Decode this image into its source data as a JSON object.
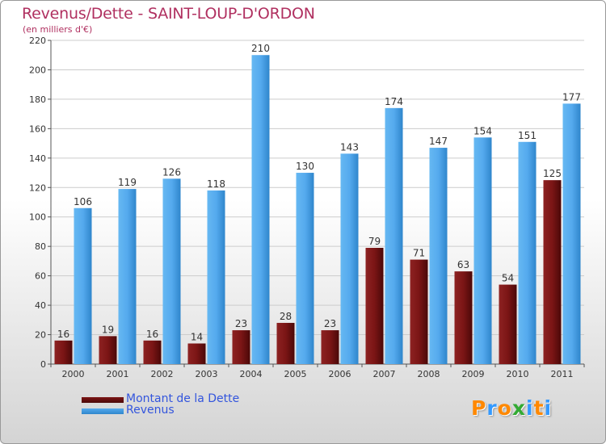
{
  "title": "Revenus/Dette - SAINT-LOUP-D'ORDON",
  "subtitle": "(en milliers d'€)",
  "logo": [
    "P",
    "r",
    "o",
    "x",
    "i",
    "t",
    "i"
  ],
  "colors": {
    "title": "#b03060",
    "dette": "#7b1515",
    "revenus": "#55aaee",
    "legend_text": "#3355dd",
    "logo": [
      "#ff8800",
      "#3399ff",
      "#ff8800",
      "#33aa33",
      "#3399ff",
      "#ff8800",
      "#3399ff"
    ]
  },
  "legend": [
    {
      "label": "Montant de la Dette",
      "color": "#7b1515"
    },
    {
      "label": "Revenus",
      "color": "#55aaee"
    }
  ],
  "chart_data": {
    "type": "bar",
    "categories": [
      "2000",
      "2001",
      "2002",
      "2003",
      "2004",
      "2005",
      "2006",
      "2007",
      "2008",
      "2009",
      "2010",
      "2011"
    ],
    "series": [
      {
        "name": "Montant de la Dette",
        "values": [
          16,
          19,
          16,
          14,
          23,
          28,
          23,
          79,
          71,
          63,
          54,
          125
        ]
      },
      {
        "name": "Revenus",
        "values": [
          106,
          119,
          126,
          118,
          210,
          130,
          143,
          174,
          147,
          154,
          151,
          177
        ]
      }
    ],
    "ylim": [
      0,
      220
    ],
    "yticks": [
      0,
      20,
      40,
      60,
      80,
      100,
      120,
      140,
      160,
      180,
      200,
      220
    ],
    "grid": true,
    "legend_position": "bottom-left"
  }
}
